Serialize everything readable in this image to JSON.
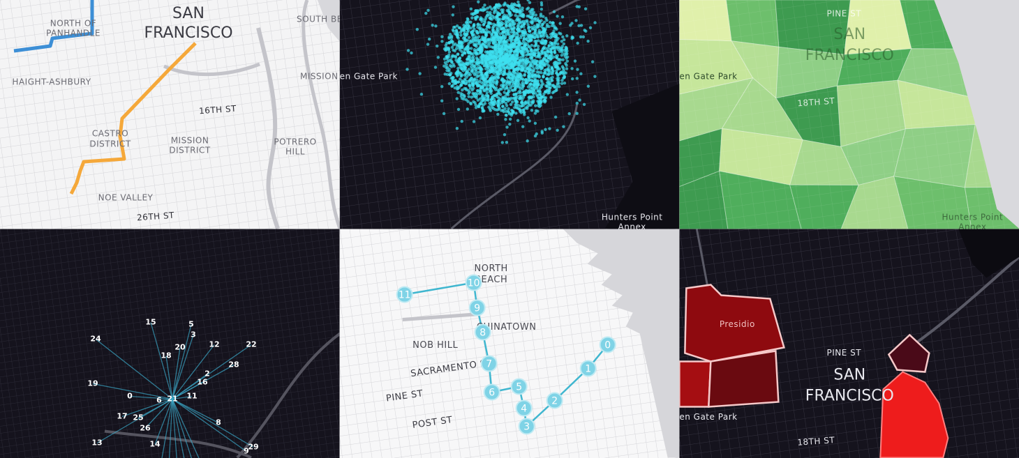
{
  "panels": [
    {
      "labels": [
        "NORTH OF",
        "PANHANDLE",
        "SAN",
        "FRANCISCO",
        "SOUTH BE",
        "MISSION",
        "HAIGHT-ASHBURY",
        "16TH ST",
        "CASTRO",
        "DISTRICT",
        "MISSION",
        "DISTRICT",
        "POTRERO",
        "HILL",
        "NOE VALLEY",
        "26TH ST"
      ]
    },
    {
      "labels": [
        "en Gate Park",
        "Hunters Point",
        "Annex"
      ]
    },
    {
      "labels": [
        "PINE ST",
        "SAN",
        "FRANCISCO",
        "en Gate Park",
        "18TH ST",
        "Hunters Point",
        "Annex"
      ]
    },
    {
      "nodes": [
        15,
        5,
        3,
        24,
        20,
        12,
        22,
        18,
        28,
        2,
        16,
        19,
        0,
        6,
        21,
        11,
        17,
        25,
        26,
        8,
        13,
        14,
        29,
        9
      ]
    },
    {
      "labels": [
        "NORTH",
        "BEACH",
        "CHINATOWN",
        "NOB HILL",
        "SACRAMENTO ST",
        "PINE ST",
        "POST ST"
      ],
      "nodes": [
        11,
        10,
        9,
        8,
        7,
        6,
        5,
        4,
        3,
        2,
        1,
        0
      ]
    },
    {
      "labels": [
        "Presidio",
        "PINE ST",
        "SAN",
        "FRANCISCO",
        "en Gate Park",
        "18TH ST"
      ]
    }
  ]
}
